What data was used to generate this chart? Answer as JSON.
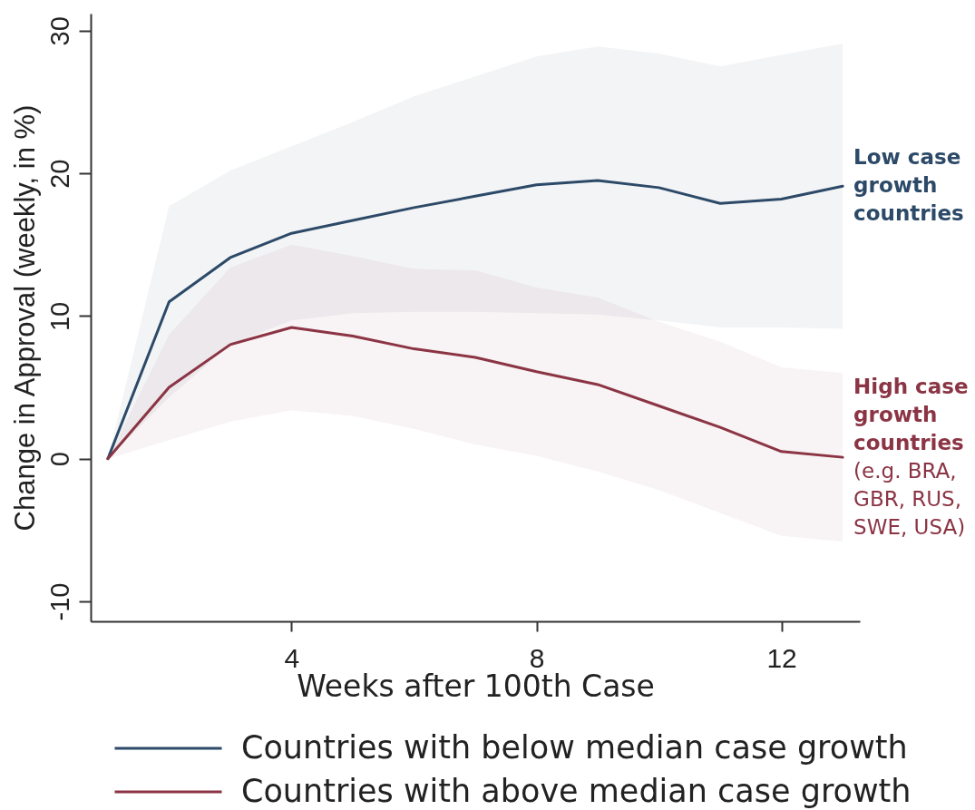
{
  "chart_data": {
    "type": "line",
    "xlabel": "Weeks after 100th Case",
    "ylabel": "Change in Approval (weekly, in %)",
    "x": [
      1,
      2,
      3,
      4,
      5,
      6,
      7,
      8,
      9,
      10,
      11,
      12,
      13
    ],
    "xlim": [
      0.72,
      13.28
    ],
    "xticks": [
      4,
      8,
      12
    ],
    "ylim": [
      -11.4,
      31.2
    ],
    "yticks": [
      -10,
      0,
      10,
      20,
      30
    ],
    "series": [
      {
        "name": "Countries with below median case growth",
        "color": "#2c4a68",
        "values": [
          0,
          11.0,
          14.1,
          15.8,
          16.7,
          17.6,
          18.4,
          19.2,
          19.5,
          19.0,
          17.9,
          18.2,
          19.1
        ],
        "lower": [
          0,
          4.3,
          8.0,
          9.7,
          10.2,
          10.3,
          10.3,
          10.2,
          10.1,
          9.7,
          9.2,
          9.2,
          9.1
        ],
        "upper": [
          0,
          17.7,
          20.2,
          21.9,
          23.6,
          25.4,
          26.8,
          28.2,
          28.9,
          28.4,
          27.5,
          28.3,
          29.1
        ]
      },
      {
        "name": "Countries with above median case growth",
        "color": "#8b3444",
        "values": [
          0,
          5.0,
          8.0,
          9.2,
          8.6,
          7.7,
          7.1,
          6.1,
          5.2,
          3.7,
          2.2,
          0.5,
          0.1
        ],
        "lower": [
          0,
          1.3,
          2.6,
          3.4,
          3.0,
          2.1,
          1.0,
          0.2,
          -0.9,
          -2.2,
          -3.8,
          -5.4,
          -5.8
        ],
        "upper": [
          0,
          8.7,
          13.4,
          15.0,
          14.2,
          13.3,
          13.2,
          12.0,
          11.3,
          9.6,
          8.2,
          6.4,
          6.0
        ]
      }
    ],
    "annotations": [
      "Low case\ngrowth\ncountries",
      "High case\ngrowth\ncountries",
      "(e.g. BRA,\nGBR, RUS,\nSWE, USA)"
    ],
    "legend": "bottom",
    "line_style": "solid",
    "marker": "none"
  }
}
